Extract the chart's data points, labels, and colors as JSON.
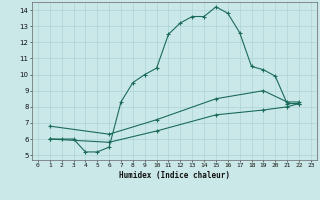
{
  "xlabel": "Humidex (Indice chaleur)",
  "bg_color": "#cbe8e8",
  "grid_color": "#aed4d4",
  "line_color": "#1a6b5a",
  "xlim": [
    -0.5,
    23.5
  ],
  "ylim": [
    4.7,
    14.5
  ],
  "xticks": [
    0,
    1,
    2,
    3,
    4,
    5,
    6,
    7,
    8,
    9,
    10,
    11,
    12,
    13,
    14,
    15,
    16,
    17,
    18,
    19,
    20,
    21,
    22,
    23
  ],
  "yticks": [
    5,
    6,
    7,
    8,
    9,
    10,
    11,
    12,
    13,
    14
  ],
  "line1_x": [
    1,
    2,
    3,
    4,
    5,
    6,
    7,
    8,
    9,
    10,
    11,
    12,
    13,
    14,
    15,
    16,
    17,
    18,
    19,
    20,
    21,
    22
  ],
  "line1_y": [
    6.0,
    6.0,
    6.0,
    5.2,
    5.2,
    5.5,
    8.3,
    9.5,
    10.0,
    10.4,
    12.5,
    13.2,
    13.6,
    13.6,
    14.2,
    13.8,
    12.6,
    10.5,
    10.3,
    9.9,
    8.2,
    8.2
  ],
  "line2_x": [
    1,
    6,
    10,
    15,
    19,
    21,
    22
  ],
  "line2_y": [
    6.8,
    6.3,
    7.2,
    8.5,
    9.0,
    8.3,
    8.3
  ],
  "line3_x": [
    1,
    6,
    10,
    15,
    19,
    21,
    22
  ],
  "line3_y": [
    6.0,
    5.8,
    6.5,
    7.5,
    7.8,
    8.0,
    8.2
  ]
}
